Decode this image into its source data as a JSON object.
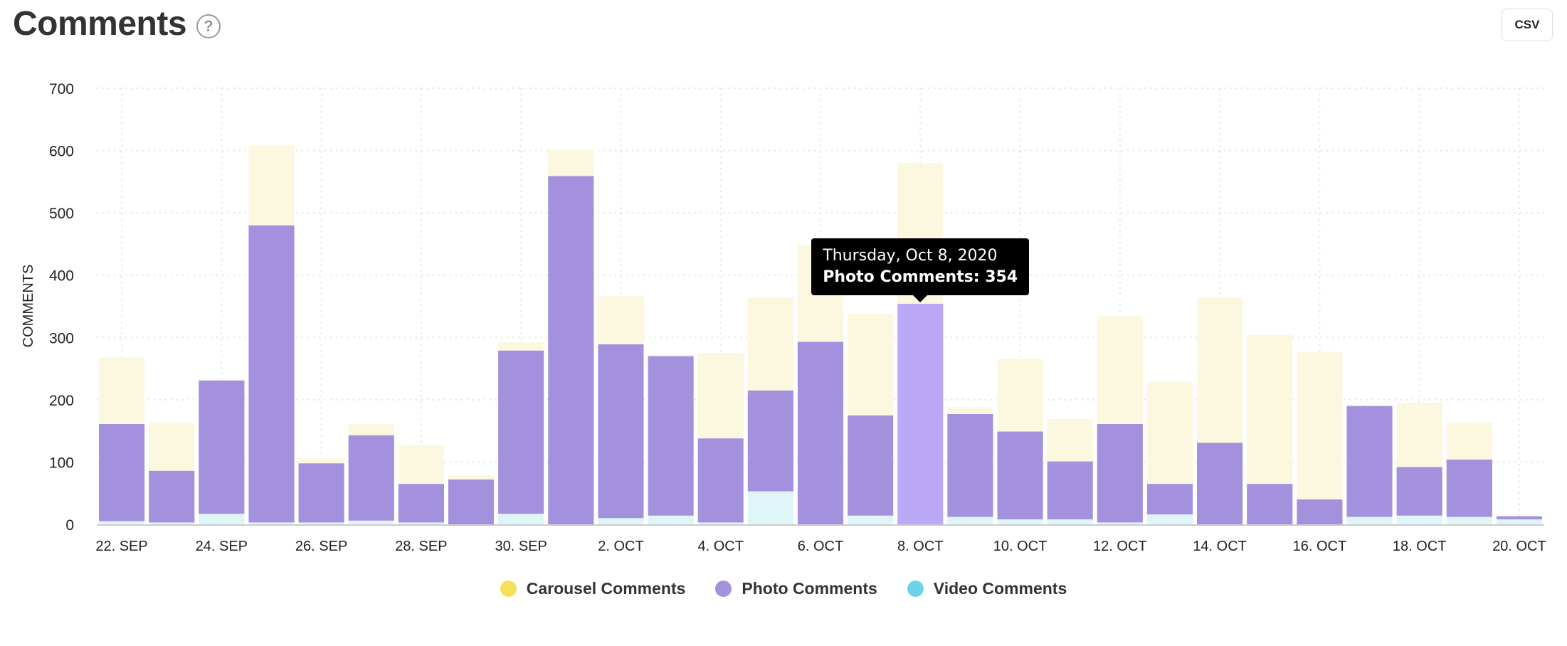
{
  "header": {
    "title": "Comments",
    "help_icon": "?",
    "csv_label": "CSV"
  },
  "tooltip": {
    "date": "Thursday, Oct 8, 2020",
    "label": "Photo Comments: 354"
  },
  "colors": {
    "carousel": "#fcf7df",
    "photo": "#a391de",
    "photo_hover": "#bba8f6",
    "video": "#dff5f8",
    "legend_carousel": "#f5e05a",
    "legend_photo": "#a391de",
    "legend_video": "#6dd3e8"
  },
  "chart_data": {
    "type": "bar",
    "stacked": true,
    "title": "Comments",
    "ylabel": "COMMENTS",
    "xlabel": "",
    "ylim": [
      0,
      700
    ],
    "yticks": [
      0,
      100,
      200,
      300,
      400,
      500,
      600,
      700
    ],
    "categories": [
      "22. SEP",
      "23. SEP",
      "24. SEP",
      "25. SEP",
      "26. SEP",
      "27. SEP",
      "28. SEP",
      "29. SEP",
      "30. SEP",
      "1. OCT",
      "2. OCT",
      "3. OCT",
      "4. OCT",
      "5. OCT",
      "6. OCT",
      "7. OCT",
      "8. OCT",
      "9. OCT",
      "10. OCT",
      "11. OCT",
      "12. OCT",
      "13. OCT",
      "14. OCT",
      "15. OCT",
      "16. OCT",
      "17. OCT",
      "18. OCT",
      "19. OCT",
      "20. OCT"
    ],
    "xtick_labels": [
      "22. SEP",
      "24. SEP",
      "26. SEP",
      "28. SEP",
      "30. SEP",
      "2. OCT",
      "4. OCT",
      "6. OCT",
      "8. OCT",
      "10. OCT",
      "12. OCT",
      "14. OCT",
      "16. OCT",
      "18. OCT",
      "20. OCT"
    ],
    "series": [
      {
        "name": "Video Comments",
        "values": [
          5,
          3,
          17,
          3,
          3,
          6,
          3,
          0,
          17,
          0,
          10,
          14,
          3,
          53,
          0,
          14,
          0,
          12,
          8,
          8,
          3,
          16,
          0,
          0,
          0,
          12,
          14,
          12,
          8
        ]
      },
      {
        "name": "Photo Comments",
        "values": [
          156,
          83,
          214,
          477,
          95,
          137,
          62,
          72,
          262,
          559,
          279,
          256,
          135,
          162,
          293,
          161,
          354,
          165,
          141,
          93,
          158,
          49,
          131,
          65,
          40,
          178,
          78,
          92,
          5
        ]
      },
      {
        "name": "Carousel Comments",
        "values": [
          107,
          77,
          2,
          128,
          8,
          18,
          62,
          6,
          13,
          42,
          77,
          2,
          137,
          149,
          155,
          163,
          226,
          11,
          116,
          68,
          173,
          164,
          233,
          239,
          237,
          2,
          103,
          59,
          0
        ]
      }
    ],
    "highlighted_index": 16,
    "legend": {
      "position": "bottom",
      "entries": [
        "Carousel Comments",
        "Photo Comments",
        "Video Comments"
      ]
    }
  }
}
